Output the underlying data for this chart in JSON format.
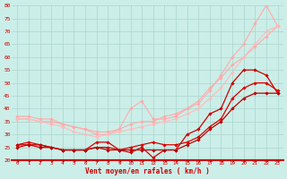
{
  "xlabel": "Vent moyen/en rafales ( km/h )",
  "bg_color": "#cceee8",
  "grid_color": "#aad4ce",
  "x": [
    0,
    1,
    2,
    3,
    4,
    5,
    6,
    7,
    8,
    9,
    10,
    11,
    12,
    13,
    14,
    15,
    16,
    17,
    18,
    19,
    20,
    21,
    22,
    23
  ],
  "ylim": [
    20,
    80
  ],
  "yticks": [
    20,
    25,
    30,
    35,
    40,
    45,
    50,
    55,
    60,
    65,
    70,
    75,
    80
  ],
  "series": [
    {
      "y": [
        36,
        36,
        35,
        35,
        34,
        33,
        32,
        31,
        31,
        32,
        34,
        35,
        35,
        37,
        38,
        40,
        43,
        48,
        52,
        57,
        60,
        64,
        68,
        72
      ],
      "color": "#ffaaaa",
      "marker": "D",
      "markersize": 1.8,
      "linewidth": 0.8,
      "zorder": 2
    },
    {
      "y": [
        37,
        37,
        36,
        36,
        34,
        33,
        32,
        30,
        30,
        32,
        40,
        43,
        36,
        36,
        37,
        40,
        42,
        47,
        53,
        60,
        65,
        73,
        80,
        72
      ],
      "color": "#ffaaaa",
      "marker": "D",
      "markersize": 1.8,
      "linewidth": 0.8,
      "zorder": 2
    },
    {
      "y": [
        36,
        36,
        35,
        34,
        33,
        31,
        30,
        29,
        30,
        31,
        32,
        33,
        34,
        35,
        36,
        38,
        40,
        44,
        48,
        54,
        60,
        65,
        70,
        72
      ],
      "color": "#ffbbbb",
      "marker": "D",
      "markersize": 1.8,
      "linewidth": 0.8,
      "zorder": 2
    },
    {
      "y": [
        26,
        27,
        26,
        25,
        24,
        24,
        24,
        27,
        27,
        24,
        25,
        26,
        27,
        26,
        26,
        27,
        29,
        33,
        36,
        44,
        48,
        50,
        50,
        47
      ],
      "color": "#dd0000",
      "marker": "D",
      "markersize": 1.8,
      "linewidth": 0.9,
      "zorder": 3
    },
    {
      "y": [
        26,
        26,
        26,
        25,
        24,
        24,
        24,
        25,
        25,
        24,
        23,
        25,
        21,
        24,
        24,
        30,
        32,
        38,
        40,
        50,
        55,
        55,
        53,
        46
      ],
      "color": "#cc0000",
      "marker": "D",
      "markersize": 1.8,
      "linewidth": 0.9,
      "zorder": 3
    },
    {
      "y": [
        25,
        26,
        25,
        25,
        24,
        24,
        24,
        25,
        24,
        24,
        24,
        24,
        24,
        24,
        24,
        26,
        28,
        32,
        35,
        40,
        44,
        46,
        46,
        46
      ],
      "color": "#bb0000",
      "marker": "D",
      "markersize": 1.8,
      "linewidth": 0.9,
      "zorder": 3
    }
  ],
  "arrow_directions": [
    45,
    45,
    45,
    45,
    45,
    45,
    45,
    45,
    45,
    0,
    0,
    0,
    0,
    0,
    45,
    45,
    45,
    45,
    45,
    45,
    45,
    45,
    45,
    45
  ],
  "arrow_color": "#cc0000"
}
